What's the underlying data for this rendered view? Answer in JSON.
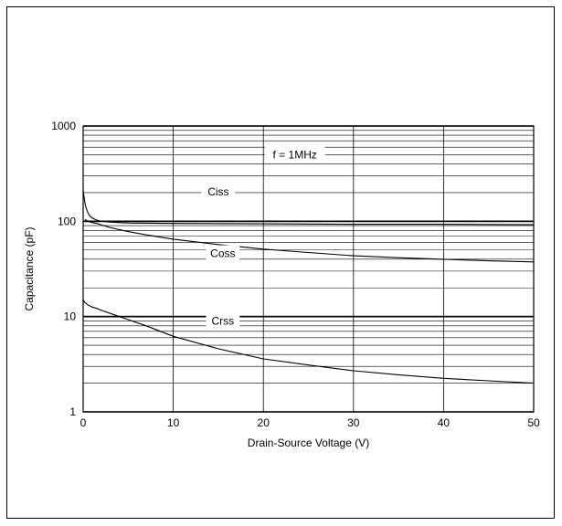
{
  "chart_data": {
    "type": "line",
    "title": "",
    "xlabel": "Drain-Source Voltage (V)",
    "ylabel": "Capacitance (pF)",
    "xlim": [
      0,
      50
    ],
    "ylim": [
      1,
      1000
    ],
    "y_scale": "log",
    "grid": true,
    "x_ticks": [
      0,
      10,
      20,
      30,
      40,
      50
    ],
    "y_ticks": [
      1,
      10,
      100,
      1000
    ],
    "x_tick_labels": [
      "0",
      "10",
      "20",
      "30",
      "40",
      "50"
    ],
    "y_tick_labels": [
      "1",
      "10",
      "100",
      "1000"
    ],
    "annotations": [
      {
        "text": "f = 1MHz",
        "x": 23.5,
        "y": 500
      },
      {
        "text": "Ciss",
        "x": 15,
        "y": 205
      },
      {
        "text": "Coss",
        "x": 15.5,
        "y": 46
      },
      {
        "text": "Crss",
        "x": 15.5,
        "y": 9
      }
    ],
    "series": [
      {
        "name": "Ciss",
        "x": [
          0,
          0.1,
          0.2,
          0.3,
          0.5,
          0.7,
          1,
          1.5,
          2,
          3,
          5,
          10,
          20,
          30,
          40,
          50
        ],
        "values": [
          210,
          180,
          155,
          140,
          125,
          115,
          108,
          103,
          100,
          98,
          96,
          95,
          94,
          93,
          93,
          92
        ]
      },
      {
        "name": "Coss",
        "x": [
          0.2,
          0.5,
          1,
          1.5,
          2,
          3,
          5,
          7,
          10,
          15,
          20,
          25,
          30,
          35,
          40,
          45,
          50
        ],
        "values": [
          105,
          100,
          97,
          95,
          92,
          86,
          78,
          72,
          65,
          57,
          51,
          47,
          43.5,
          41.5,
          40,
          38.5,
          37.5
        ]
      },
      {
        "name": "Crss",
        "x": [
          0,
          0.2,
          0.5,
          1,
          1.5,
          2,
          3,
          5,
          7,
          10,
          15,
          20,
          25,
          30,
          35,
          40,
          45,
          50
        ],
        "values": [
          15,
          14,
          13.3,
          12.6,
          12.2,
          11.7,
          10.8,
          9.3,
          8,
          6.2,
          4.6,
          3.6,
          3.1,
          2.7,
          2.45,
          2.25,
          2.12,
          2.0
        ]
      }
    ]
  }
}
